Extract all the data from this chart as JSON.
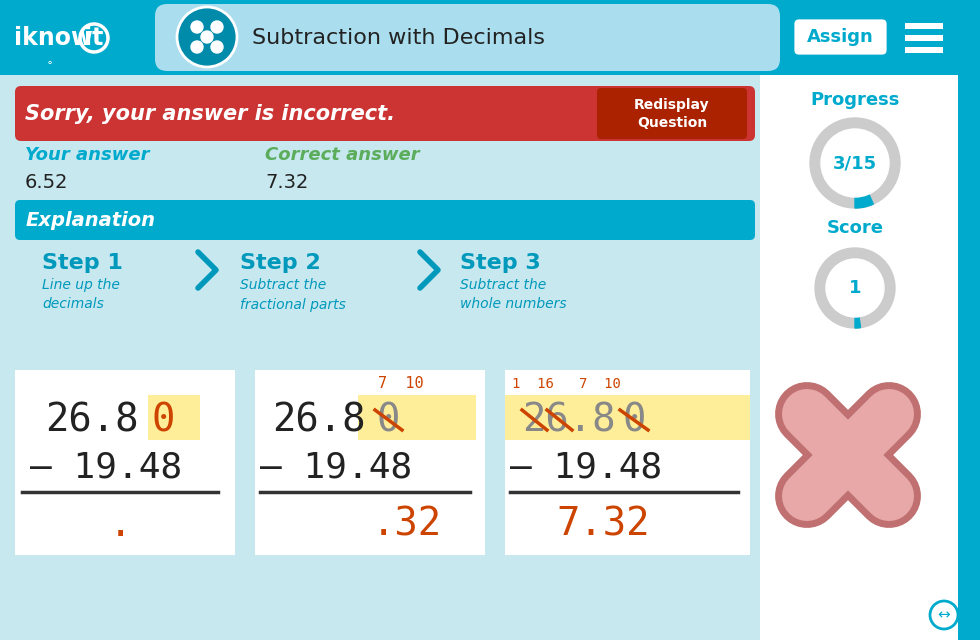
{
  "title": "Subtraction with Decimals",
  "header_bg": "#00AACC",
  "header_light_bg": "#AADDEE",
  "main_bg": "#C8E8F0",
  "white": "#FFFFFF",
  "teal": "#00AACC",
  "dark_teal": "#008BAA",
  "red_bg": "#CC3333",
  "green_text": "#5BAD5B",
  "orange_text": "#CC4400",
  "highlight_yellow": "#FFEE99",
  "step_color": "#0099BB",
  "arrow_color": "#0099BB",
  "progress_text": "3/15",
  "score_text": "1",
  "incorrect_msg": "Sorry, your answer is incorrect.",
  "your_answer_label": "Your answer",
  "your_answer_val": "6.52",
  "correct_answer_label": "Correct answer",
  "correct_answer_val": "7.32",
  "step1_title": "Step 1",
  "step1_desc": "Line up the\ndecimals",
  "step2_title": "Step 2",
  "step2_desc": "Subtract the\nfractional parts",
  "step3_title": "Step 3",
  "step3_desc": "Subtract the\nwhole numbers",
  "sidebar_bg": "#FFFFFF"
}
